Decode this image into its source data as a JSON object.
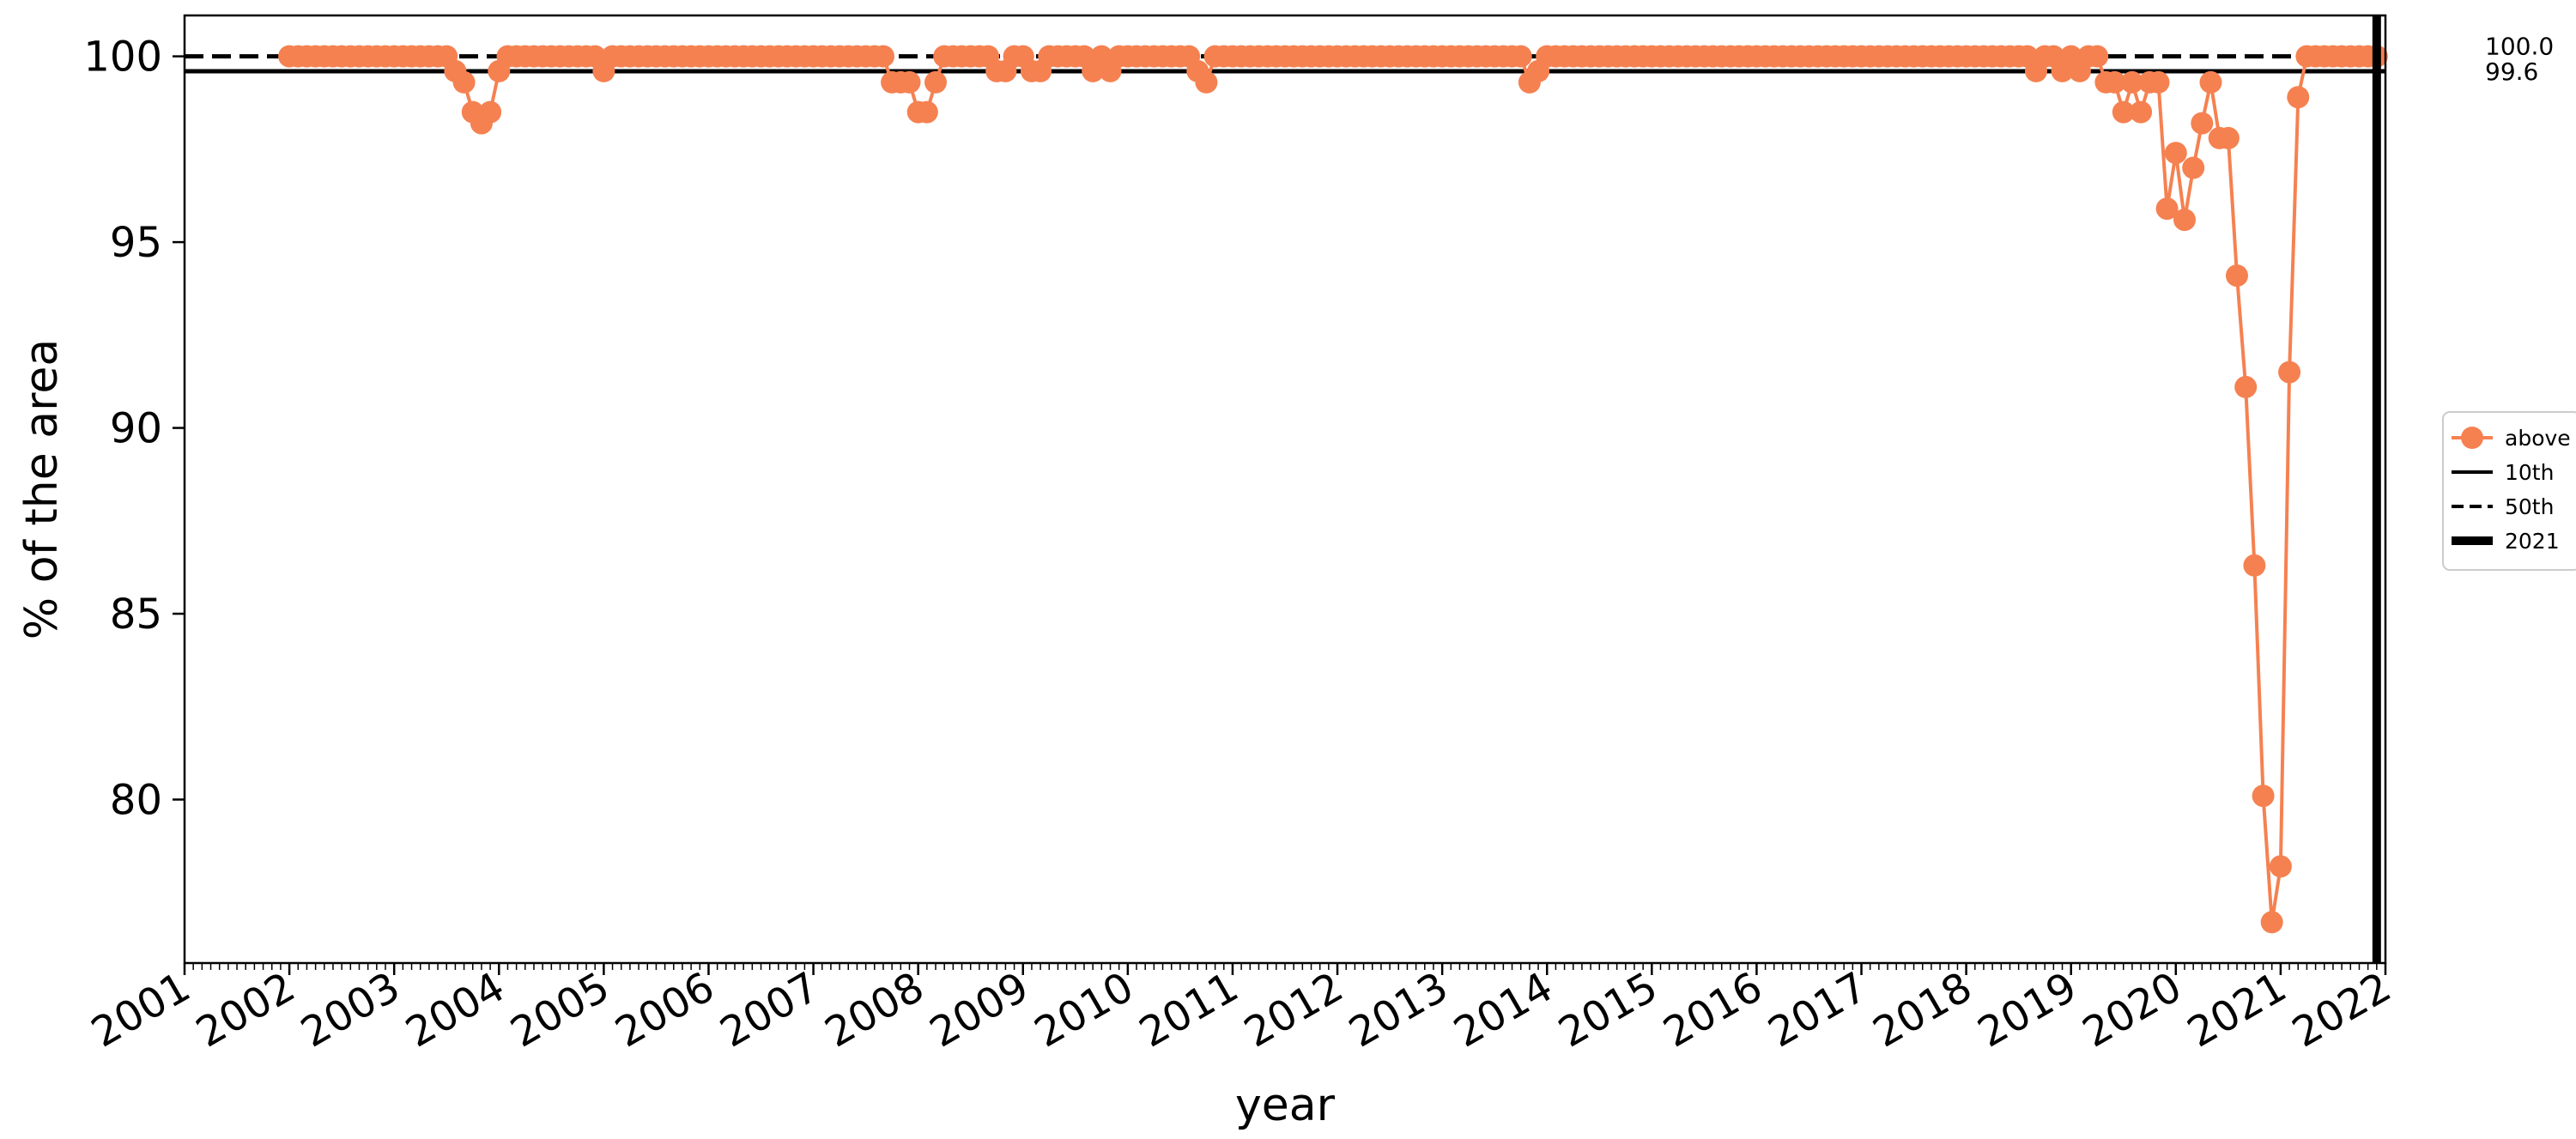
{
  "chart_data": {
    "type": "line",
    "xlabel": "year",
    "ylabel": "% of the area",
    "xlim": [
      "2001-01-01",
      "2022-01-01"
    ],
    "ylim": [
      75.6,
      101.1
    ],
    "yticks": [
      80,
      85,
      90,
      95,
      100
    ],
    "xticks": [
      "2001",
      "2002",
      "2003",
      "2004",
      "2005",
      "2006",
      "2007",
      "2008",
      "2009",
      "2010",
      "2011",
      "2012",
      "2013",
      "2014",
      "2015",
      "2016",
      "2017",
      "2018",
      "2019",
      "2020",
      "2021",
      "2022"
    ],
    "grid": false,
    "legend_position": "center-right",
    "colors": {
      "series": "#F58151",
      "reference": "#000000"
    },
    "series": [
      {
        "name": "above",
        "marker": "circle",
        "points": [
          [
            "2002-01-01",
            100
          ],
          [
            "2002-02-01",
            100
          ],
          [
            "2002-03-01",
            100
          ],
          [
            "2002-04-01",
            100
          ],
          [
            "2002-05-01",
            100
          ],
          [
            "2002-06-01",
            100
          ],
          [
            "2002-07-01",
            100
          ],
          [
            "2002-08-01",
            100
          ],
          [
            "2002-09-01",
            100
          ],
          [
            "2002-10-01",
            100
          ],
          [
            "2002-11-01",
            100
          ],
          [
            "2002-12-01",
            100
          ],
          [
            "2003-01-01",
            100
          ],
          [
            "2003-02-01",
            100
          ],
          [
            "2003-03-01",
            100
          ],
          [
            "2003-04-01",
            100
          ],
          [
            "2003-05-01",
            100
          ],
          [
            "2003-06-01",
            100
          ],
          [
            "2003-07-01",
            100
          ],
          [
            "2003-08-01",
            99.6
          ],
          [
            "2003-09-01",
            99.3
          ],
          [
            "2003-10-01",
            98.5
          ],
          [
            "2003-11-01",
            98.2
          ],
          [
            "2003-12-01",
            98.5
          ],
          [
            "2004-01-01",
            99.6
          ],
          [
            "2004-02-01",
            100
          ],
          [
            "2004-03-01",
            100
          ],
          [
            "2004-04-01",
            100
          ],
          [
            "2004-05-01",
            100
          ],
          [
            "2004-06-01",
            100
          ],
          [
            "2004-07-01",
            100
          ],
          [
            "2004-08-01",
            100
          ],
          [
            "2004-09-01",
            100
          ],
          [
            "2004-10-01",
            100
          ],
          [
            "2004-11-01",
            100
          ],
          [
            "2004-12-01",
            100
          ],
          [
            "2005-01-01",
            99.6
          ],
          [
            "2005-02-01",
            100
          ],
          [
            "2005-03-01",
            100
          ],
          [
            "2005-04-01",
            100
          ],
          [
            "2005-05-01",
            100
          ],
          [
            "2005-06-01",
            100
          ],
          [
            "2005-07-01",
            100
          ],
          [
            "2005-08-01",
            100
          ],
          [
            "2005-09-01",
            100
          ],
          [
            "2005-10-01",
            100
          ],
          [
            "2005-11-01",
            100
          ],
          [
            "2005-12-01",
            100
          ],
          [
            "2006-01-01",
            100
          ],
          [
            "2006-02-01",
            100
          ],
          [
            "2006-03-01",
            100
          ],
          [
            "2006-04-01",
            100
          ],
          [
            "2006-05-01",
            100
          ],
          [
            "2006-06-01",
            100
          ],
          [
            "2006-07-01",
            100
          ],
          [
            "2006-08-01",
            100
          ],
          [
            "2006-09-01",
            100
          ],
          [
            "2006-10-01",
            100
          ],
          [
            "2006-11-01",
            100
          ],
          [
            "2006-12-01",
            100
          ],
          [
            "2007-01-01",
            100
          ],
          [
            "2007-02-01",
            100
          ],
          [
            "2007-03-01",
            100
          ],
          [
            "2007-04-01",
            100
          ],
          [
            "2007-05-01",
            100
          ],
          [
            "2007-06-01",
            100
          ],
          [
            "2007-07-01",
            100
          ],
          [
            "2007-08-01",
            100
          ],
          [
            "2007-09-01",
            100
          ],
          [
            "2007-10-01",
            99.3
          ],
          [
            "2007-11-01",
            99.3
          ],
          [
            "2007-12-01",
            99.3
          ],
          [
            "2008-01-01",
            98.5
          ],
          [
            "2008-02-01",
            98.5
          ],
          [
            "2008-03-01",
            99.3
          ],
          [
            "2008-04-01",
            100
          ],
          [
            "2008-05-01",
            100
          ],
          [
            "2008-06-01",
            100
          ],
          [
            "2008-07-01",
            100
          ],
          [
            "2008-08-01",
            100
          ],
          [
            "2008-09-01",
            100
          ],
          [
            "2008-10-01",
            99.6
          ],
          [
            "2008-11-01",
            99.6
          ],
          [
            "2008-12-01",
            100
          ],
          [
            "2009-01-01",
            100
          ],
          [
            "2009-02-01",
            99.6
          ],
          [
            "2009-03-01",
            99.6
          ],
          [
            "2009-04-01",
            100
          ],
          [
            "2009-05-01",
            100
          ],
          [
            "2009-06-01",
            100
          ],
          [
            "2009-07-01",
            100
          ],
          [
            "2009-08-01",
            100
          ],
          [
            "2009-09-01",
            99.6
          ],
          [
            "2009-10-01",
            100
          ],
          [
            "2009-11-01",
            99.6
          ],
          [
            "2009-12-01",
            100
          ],
          [
            "2010-01-01",
            100
          ],
          [
            "2010-02-01",
            100
          ],
          [
            "2010-03-01",
            100
          ],
          [
            "2010-04-01",
            100
          ],
          [
            "2010-05-01",
            100
          ],
          [
            "2010-06-01",
            100
          ],
          [
            "2010-07-01",
            100
          ],
          [
            "2010-08-01",
            100
          ],
          [
            "2010-09-01",
            99.6
          ],
          [
            "2010-10-01",
            99.3
          ],
          [
            "2010-11-01",
            100
          ],
          [
            "2010-12-01",
            100
          ],
          [
            "2011-01-01",
            100
          ],
          [
            "2011-02-01",
            100
          ],
          [
            "2011-03-01",
            100
          ],
          [
            "2011-04-01",
            100
          ],
          [
            "2011-05-01",
            100
          ],
          [
            "2011-06-01",
            100
          ],
          [
            "2011-07-01",
            100
          ],
          [
            "2011-08-01",
            100
          ],
          [
            "2011-09-01",
            100
          ],
          [
            "2011-10-01",
            100
          ],
          [
            "2011-11-01",
            100
          ],
          [
            "2011-12-01",
            100
          ],
          [
            "2012-01-01",
            100
          ],
          [
            "2012-02-01",
            100
          ],
          [
            "2012-03-01",
            100
          ],
          [
            "2012-04-01",
            100
          ],
          [
            "2012-05-01",
            100
          ],
          [
            "2012-06-01",
            100
          ],
          [
            "2012-07-01",
            100
          ],
          [
            "2012-08-01",
            100
          ],
          [
            "2012-09-01",
            100
          ],
          [
            "2012-10-01",
            100
          ],
          [
            "2012-11-01",
            100
          ],
          [
            "2012-12-01",
            100
          ],
          [
            "2013-01-01",
            100
          ],
          [
            "2013-02-01",
            100
          ],
          [
            "2013-03-01",
            100
          ],
          [
            "2013-04-01",
            100
          ],
          [
            "2013-05-01",
            100
          ],
          [
            "2013-06-01",
            100
          ],
          [
            "2013-07-01",
            100
          ],
          [
            "2013-08-01",
            100
          ],
          [
            "2013-09-01",
            100
          ],
          [
            "2013-10-01",
            100
          ],
          [
            "2013-11-01",
            99.3
          ],
          [
            "2013-12-01",
            99.6
          ],
          [
            "2014-01-01",
            100
          ],
          [
            "2014-02-01",
            100
          ],
          [
            "2014-03-01",
            100
          ],
          [
            "2014-04-01",
            100
          ],
          [
            "2014-05-01",
            100
          ],
          [
            "2014-06-01",
            100
          ],
          [
            "2014-07-01",
            100
          ],
          [
            "2014-08-01",
            100
          ],
          [
            "2014-09-01",
            100
          ],
          [
            "2014-10-01",
            100
          ],
          [
            "2014-11-01",
            100
          ],
          [
            "2014-12-01",
            100
          ],
          [
            "2015-01-01",
            100
          ],
          [
            "2015-02-01",
            100
          ],
          [
            "2015-03-01",
            100
          ],
          [
            "2015-04-01",
            100
          ],
          [
            "2015-05-01",
            100
          ],
          [
            "2015-06-01",
            100
          ],
          [
            "2015-07-01",
            100
          ],
          [
            "2015-08-01",
            100
          ],
          [
            "2015-09-01",
            100
          ],
          [
            "2015-10-01",
            100
          ],
          [
            "2015-11-01",
            100
          ],
          [
            "2015-12-01",
            100
          ],
          [
            "2016-01-01",
            100
          ],
          [
            "2016-02-01",
            100
          ],
          [
            "2016-03-01",
            100
          ],
          [
            "2016-04-01",
            100
          ],
          [
            "2016-05-01",
            100
          ],
          [
            "2016-06-01",
            100
          ],
          [
            "2016-07-01",
            100
          ],
          [
            "2016-08-01",
            100
          ],
          [
            "2016-09-01",
            100
          ],
          [
            "2016-10-01",
            100
          ],
          [
            "2016-11-01",
            100
          ],
          [
            "2016-12-01",
            100
          ],
          [
            "2017-01-01",
            100
          ],
          [
            "2017-02-01",
            100
          ],
          [
            "2017-03-01",
            100
          ],
          [
            "2017-04-01",
            100
          ],
          [
            "2017-05-01",
            100
          ],
          [
            "2017-06-01",
            100
          ],
          [
            "2017-07-01",
            100
          ],
          [
            "2017-08-01",
            100
          ],
          [
            "2017-09-01",
            100
          ],
          [
            "2017-10-01",
            100
          ],
          [
            "2017-11-01",
            100
          ],
          [
            "2017-12-01",
            100
          ],
          [
            "2018-01-01",
            100
          ],
          [
            "2018-02-01",
            100
          ],
          [
            "2018-03-01",
            100
          ],
          [
            "2018-04-01",
            100
          ],
          [
            "2018-05-01",
            100
          ],
          [
            "2018-06-01",
            100
          ],
          [
            "2018-07-01",
            100
          ],
          [
            "2018-08-01",
            100
          ],
          [
            "2018-09-01",
            99.6
          ],
          [
            "2018-10-01",
            100
          ],
          [
            "2018-11-01",
            100
          ],
          [
            "2018-12-01",
            99.6
          ],
          [
            "2019-01-01",
            100
          ],
          [
            "2019-02-01",
            99.6
          ],
          [
            "2019-03-01",
            100
          ],
          [
            "2019-04-01",
            100
          ],
          [
            "2019-05-01",
            99.3
          ],
          [
            "2019-06-01",
            99.3
          ],
          [
            "2019-07-01",
            98.5
          ],
          [
            "2019-08-01",
            99.3
          ],
          [
            "2019-09-01",
            98.5
          ],
          [
            "2019-10-01",
            99.3
          ],
          [
            "2019-11-01",
            99.3
          ],
          [
            "2019-12-01",
            95.9
          ],
          [
            "2020-01-01",
            97.4
          ],
          [
            "2020-02-01",
            95.6
          ],
          [
            "2020-03-01",
            97.0
          ],
          [
            "2020-04-01",
            98.2
          ],
          [
            "2020-05-01",
            99.3
          ],
          [
            "2020-06-01",
            97.8
          ],
          [
            "2020-07-01",
            97.8
          ],
          [
            "2020-08-01",
            94.1
          ],
          [
            "2020-09-01",
            91.1
          ],
          [
            "2020-10-01",
            86.3
          ],
          [
            "2020-11-01",
            80.1
          ],
          [
            "2020-12-01",
            76.7
          ],
          [
            "2021-01-01",
            78.2
          ],
          [
            "2021-02-01",
            91.5
          ],
          [
            "2021-03-01",
            98.9
          ],
          [
            "2021-04-01",
            100
          ],
          [
            "2021-05-01",
            100
          ],
          [
            "2021-06-01",
            100
          ],
          [
            "2021-07-01",
            100
          ],
          [
            "2021-08-01",
            100
          ],
          [
            "2021-09-01",
            100
          ],
          [
            "2021-10-01",
            100
          ],
          [
            "2021-11-01",
            100
          ],
          [
            "2021-12-01",
            100
          ]
        ]
      }
    ],
    "reference_lines": [
      {
        "name": "10th",
        "value": 99.6,
        "label": "99.6",
        "style": "solid"
      },
      {
        "name": "50th",
        "value": 100.0,
        "label": "100.0",
        "style": "dashed"
      }
    ],
    "vertical_lines": [
      {
        "name": "2021",
        "x": "2021-12-01",
        "style": "thick"
      }
    ],
    "legend": [
      {
        "label": "above",
        "kind": "marker-line"
      },
      {
        "label": "10th",
        "kind": "solid"
      },
      {
        "label": "50th",
        "kind": "dashed"
      },
      {
        "label": "2021",
        "kind": "thick"
      }
    ]
  }
}
